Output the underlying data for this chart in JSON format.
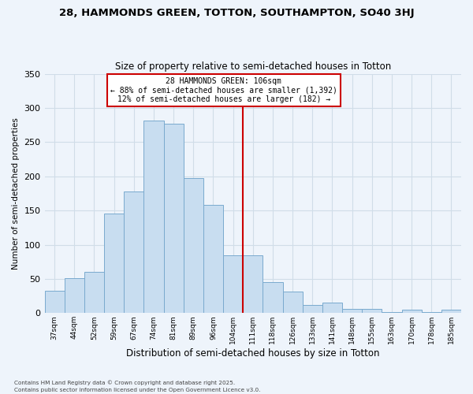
{
  "title": "28, HAMMONDS GREEN, TOTTON, SOUTHAMPTON, SO40 3HJ",
  "subtitle": "Size of property relative to semi-detached houses in Totton",
  "xlabel": "Distribution of semi-detached houses by size in Totton",
  "ylabel": "Number of semi-detached properties",
  "bar_labels": [
    "37sqm",
    "44sqm",
    "52sqm",
    "59sqm",
    "67sqm",
    "74sqm",
    "81sqm",
    "89sqm",
    "96sqm",
    "104sqm",
    "111sqm",
    "118sqm",
    "126sqm",
    "133sqm",
    "141sqm",
    "148sqm",
    "155sqm",
    "163sqm",
    "170sqm",
    "178sqm",
    "185sqm"
  ],
  "bar_values": [
    33,
    51,
    60,
    145,
    178,
    282,
    277,
    197,
    158,
    85,
    85,
    45,
    31,
    12,
    15,
    6,
    6,
    1,
    5,
    1,
    5
  ],
  "bar_color": "#c8ddf0",
  "bar_edge_color": "#7aaace",
  "vline_x_idx": 9,
  "vline_color": "#cc0000",
  "annotation_title": "28 HAMMONDS GREEN: 106sqm",
  "annotation_line1": "← 88% of semi-detached houses are smaller (1,392)",
  "annotation_line2": "12% of semi-detached houses are larger (182) →",
  "annotation_box_color": "white",
  "annotation_box_edge": "#cc0000",
  "ylim": [
    0,
    350
  ],
  "yticks": [
    0,
    50,
    100,
    150,
    200,
    250,
    300,
    350
  ],
  "footnote1": "Contains HM Land Registry data © Crown copyright and database right 2025.",
  "footnote2": "Contains public sector information licensed under the Open Government Licence v3.0.",
  "bg_color": "#eef4fb",
  "grid_color": "#d0dde8"
}
